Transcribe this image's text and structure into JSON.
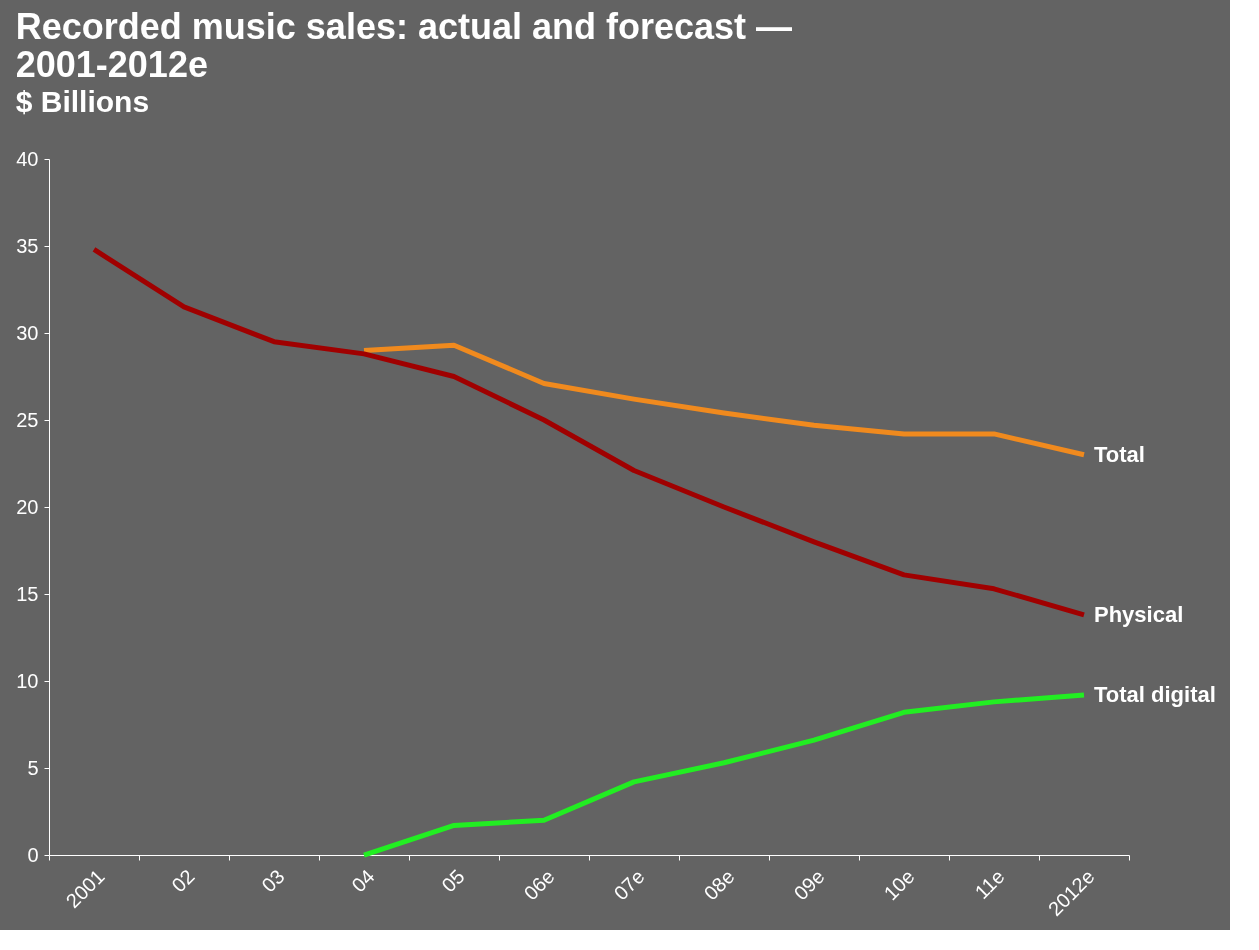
{
  "chart_data": {
    "type": "line",
    "title": "Recorded music sales: actual and forecast — 2001-2012e",
    "subtitle": "$ Billions",
    "categories": [
      "2001",
      "02",
      "03",
      "04",
      "05",
      "06e",
      "07e",
      "08e",
      "09e",
      "10e",
      "11e",
      "2012e"
    ],
    "series": [
      {
        "name": "Total",
        "color": "#f08a1e",
        "values": [
          null,
          null,
          null,
          29.0,
          29.3,
          27.1,
          26.2,
          25.4,
          24.7,
          24.2,
          24.2,
          23.0
        ]
      },
      {
        "name": "Physical",
        "color": "#a00000",
        "values": [
          34.8,
          31.5,
          29.5,
          28.8,
          27.5,
          25.0,
          22.1,
          20.0,
          18.0,
          16.1,
          15.3,
          13.8
        ]
      },
      {
        "name": "Total digital",
        "color": "#22ee22",
        "values": [
          null,
          null,
          null,
          0,
          1.7,
          2.0,
          4.2,
          5.3,
          6.6,
          8.2,
          8.8,
          9.2
        ]
      }
    ],
    "ylim": [
      0,
      40
    ],
    "yticks": [
      0,
      5,
      10,
      15,
      20,
      25,
      30,
      35,
      40
    ],
    "grid": false,
    "legend": false,
    "line_style": "solid",
    "marker": "none"
  }
}
